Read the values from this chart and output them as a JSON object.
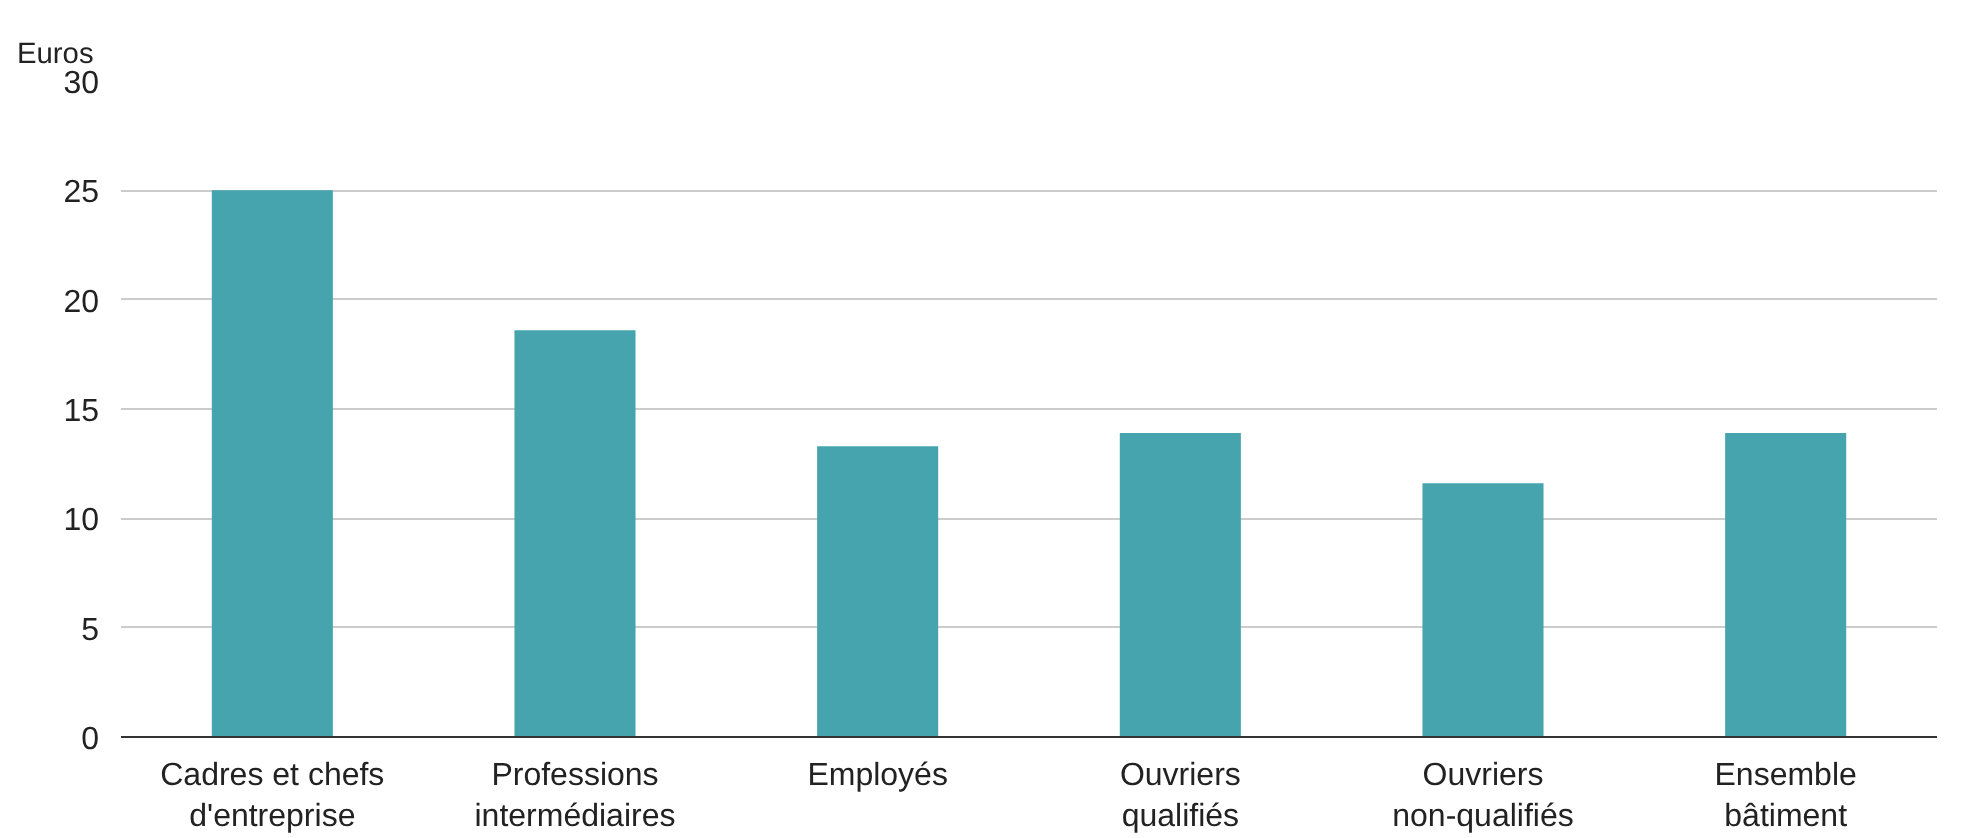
{
  "chart_data": {
    "type": "bar",
    "ylabel": "Euros",
    "categories": [
      "Cadres et chefs d'entreprise",
      "Professions intermédiaires",
      "Employés",
      "Ouvriers qualifiés",
      "Ouvriers non-qualifiés",
      "Ensemble bâtiment"
    ],
    "values": [
      25.0,
      18.6,
      13.3,
      13.9,
      11.6,
      13.9
    ],
    "color": "#45a4ae",
    "ylim": [
      0,
      30
    ],
    "yticks": [
      0,
      5,
      10,
      15,
      20,
      25,
      30
    ],
    "grid": "y"
  }
}
